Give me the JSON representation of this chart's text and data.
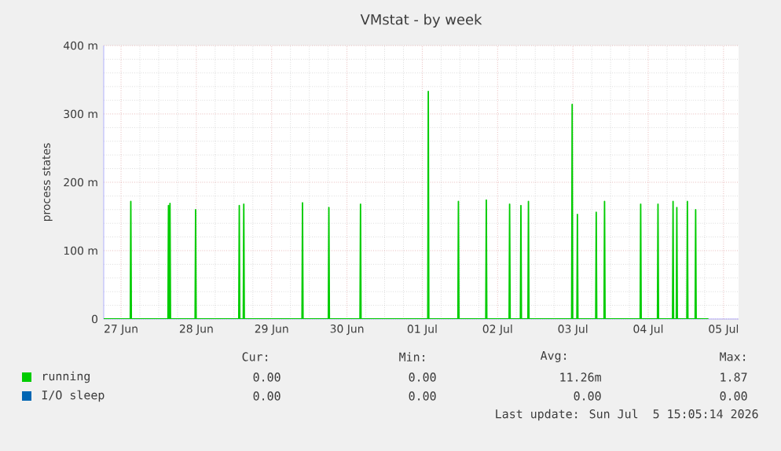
{
  "chart_data": {
    "type": "line",
    "title": "VMstat - by week",
    "ylabel": "process states",
    "xlim": [
      "2026-06-26T18:29",
      "2026-07-05T04:48"
    ],
    "ylim": [
      0,
      400
    ],
    "xticks": [
      {
        "value": "2026-06-27",
        "label": "27 Jun"
      },
      {
        "value": "2026-06-28",
        "label": "28 Jun"
      },
      {
        "value": "2026-06-29",
        "label": "29 Jun"
      },
      {
        "value": "2026-06-30",
        "label": "30 Jun"
      },
      {
        "value": "2026-07-01",
        "label": "01 Jul"
      },
      {
        "value": "2026-07-02",
        "label": "02 Jul"
      },
      {
        "value": "2026-07-03",
        "label": "03 Jul"
      },
      {
        "value": "2026-07-04",
        "label": "04 Jul"
      },
      {
        "value": "2026-07-05",
        "label": "05 Jul"
      }
    ],
    "yticks": [
      0,
      {
        "value": 100,
        "label": "100 m"
      },
      {
        "value": 200,
        "label": "200 m"
      },
      {
        "value": 300,
        "label": "300 m"
      },
      {
        "value": 400,
        "label": "400 m"
      }
    ],
    "grid": true,
    "legend": "bottom",
    "marker": "none",
    "line_style": "solid",
    "series": [
      {
        "name": "running",
        "color": "#00cc00",
        "x": [
          "2026-06-26T18:29",
          "2026-06-27T02:57",
          "2026-06-27T03:07",
          "2026-06-27T03:17",
          "2026-06-27T14:57",
          "2026-06-27T15:07",
          "2026-06-27T15:22",
          "2026-06-27T15:36",
          "2026-06-27T15:46",
          "2026-06-27T23:36",
          "2026-06-27T23:46",
          "2026-06-27T23:56",
          "2026-06-28T13:31",
          "2026-06-28T13:41",
          "2026-06-28T13:51",
          "2026-06-28T14:57",
          "2026-06-28T15:07",
          "2026-06-28T15:17",
          "2026-06-29T09:40",
          "2026-06-29T09:50",
          "2026-06-29T10:00",
          "2026-06-29T18:04",
          "2026-06-29T18:14",
          "2026-06-29T18:24",
          "2026-06-30T04:09",
          "2026-06-30T04:19",
          "2026-06-30T04:29",
          "2026-07-01T01:45",
          "2026-07-01T01:55",
          "2026-07-01T02:05",
          "2026-07-01T11:21",
          "2026-07-01T11:31",
          "2026-07-01T11:41",
          "2026-07-01T20:14",
          "2026-07-01T20:24",
          "2026-07-01T20:34",
          "2026-07-02T03:40",
          "2026-07-02T03:50",
          "2026-07-02T04:00",
          "2026-07-02T07:16",
          "2026-07-02T07:26",
          "2026-07-02T07:36",
          "2026-07-02T09:40",
          "2026-07-02T09:50",
          "2026-07-02T10:00",
          "2026-07-02T23:36",
          "2026-07-02T23:46",
          "2026-07-02T23:56",
          "2026-07-03T01:16",
          "2026-07-03T01:26",
          "2026-07-03T01:36",
          "2026-07-03T07:16",
          "2026-07-03T07:26",
          "2026-07-03T07:36",
          "2026-07-03T09:55",
          "2026-07-03T10:05",
          "2026-07-03T10:15",
          "2026-07-03T21:26",
          "2026-07-03T21:36",
          "2026-07-03T21:46",
          "2026-07-04T02:57",
          "2026-07-04T03:07",
          "2026-07-04T03:17",
          "2026-07-04T07:45",
          "2026-07-04T07:55",
          "2026-07-04T08:05",
          "2026-07-04T08:57",
          "2026-07-04T09:07",
          "2026-07-04T09:17",
          "2026-07-04T12:19",
          "2026-07-04T12:29",
          "2026-07-04T12:39",
          "2026-07-04T14:57",
          "2026-07-04T15:07",
          "2026-07-04T15:17",
          "2026-07-04T19:12"
        ],
        "values": [
          0,
          0,
          172,
          0,
          0,
          166,
          0,
          169,
          0,
          0,
          160,
          0,
          0,
          166,
          0,
          0,
          168,
          0,
          0,
          170,
          0,
          0,
          163,
          0,
          0,
          168,
          0,
          0,
          333,
          0,
          0,
          172,
          0,
          0,
          174,
          0,
          0,
          168,
          0,
          0,
          166,
          0,
          0,
          172,
          0,
          0,
          314,
          0,
          0,
          153,
          0,
          0,
          156,
          0,
          0,
          172,
          0,
          0,
          168,
          0,
          0,
          168,
          0,
          0,
          172,
          0,
          0,
          163,
          0,
          0,
          172,
          0,
          0,
          160,
          0,
          0
        ]
      },
      {
        "name": "I/O sleep",
        "color": "#0066b3"
      }
    ],
    "annotations": [
      "Cur:",
      "Min:",
      "Avg:",
      "Max:",
      "0.00",
      "0.00",
      "11.26m",
      "1.87",
      "0.00",
      "0.00",
      "0.00",
      "0.00",
      "Last update: Sun Jul  5 15:05:14 2026"
    ]
  }
}
